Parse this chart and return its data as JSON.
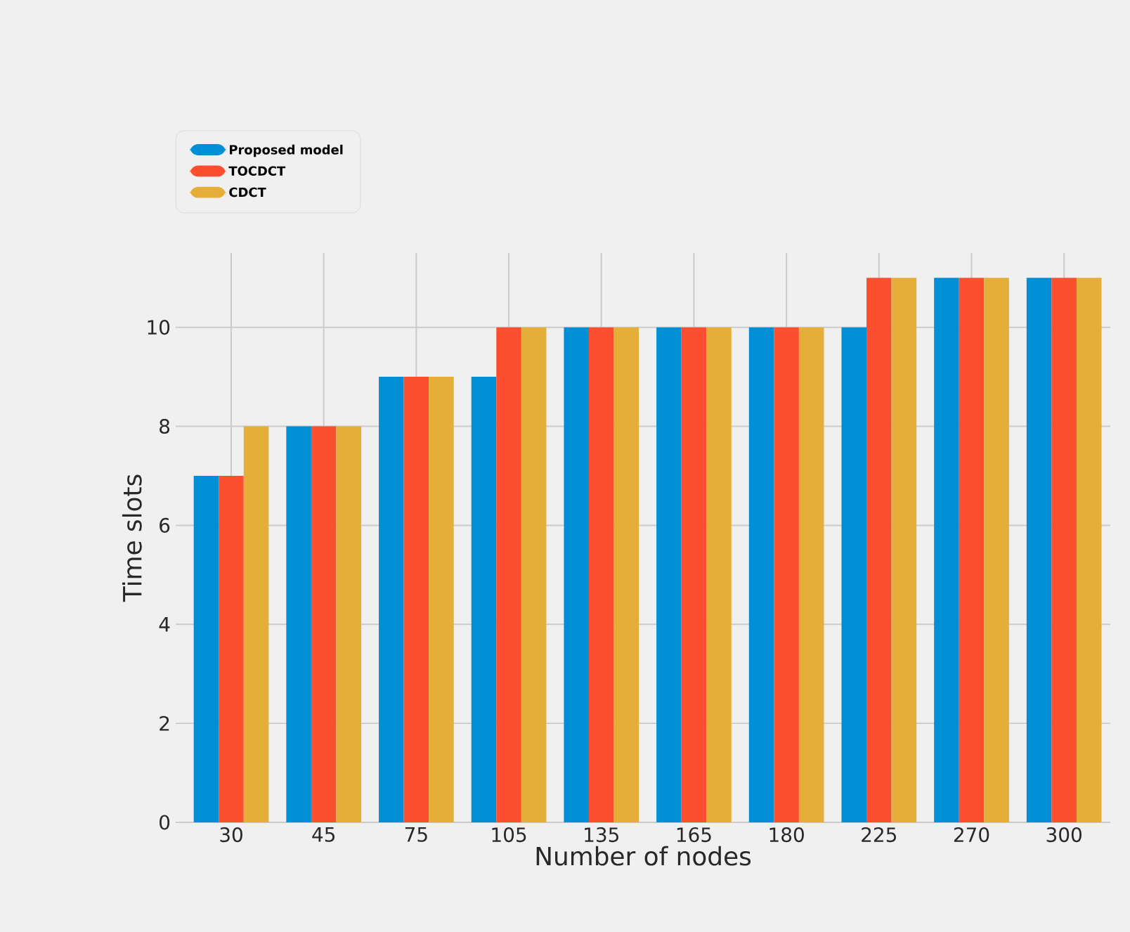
{
  "chart_data": {
    "type": "bar",
    "xlabel": "Number of nodes",
    "ylabel": "Time slots",
    "categories": [
      "30",
      "45",
      "75",
      "105",
      "135",
      "165",
      "180",
      "225",
      "270",
      "300"
    ],
    "series": [
      {
        "name": "Proposed model",
        "color": "#008fd5",
        "values": [
          7,
          8,
          9,
          9,
          10,
          10,
          10,
          10,
          11,
          11
        ]
      },
      {
        "name": "TOCDCT",
        "color": "#fc4f30",
        "values": [
          7,
          8,
          9,
          10,
          10,
          10,
          10,
          11,
          11,
          11
        ]
      },
      {
        "name": "CDCT",
        "color": "#e5ae38",
        "values": [
          8,
          8,
          9,
          10,
          10,
          10,
          10,
          11,
          11,
          11
        ]
      }
    ],
    "ylim": [
      0,
      11.5
    ],
    "yticks": [
      0,
      2,
      4,
      6,
      8,
      10
    ],
    "grid": true,
    "legend": "top left"
  }
}
